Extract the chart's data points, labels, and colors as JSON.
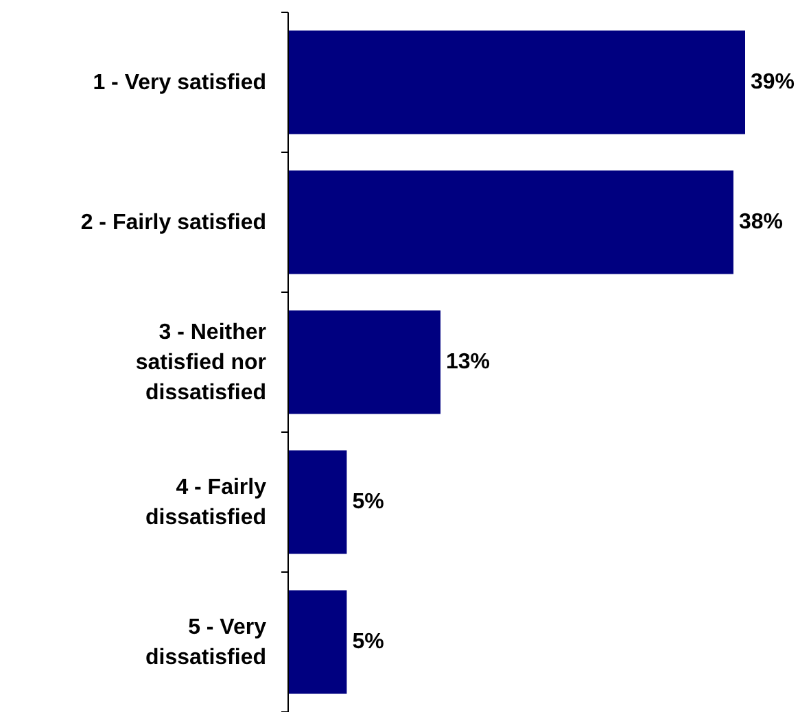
{
  "chart_data": {
    "type": "bar",
    "orientation": "horizontal",
    "categories": [
      "1 - Very satisfied",
      "2 - Fairly satisfied",
      "3 - Neither satisfied nor dissatisfied",
      "4 - Fairly dissatisfied",
      "5 - Very dissatisfied"
    ],
    "values": [
      39,
      38,
      13,
      5,
      5
    ],
    "value_labels": [
      "39%",
      "38%",
      "13%",
      "5%",
      "5%"
    ],
    "color": "#000080"
  }
}
